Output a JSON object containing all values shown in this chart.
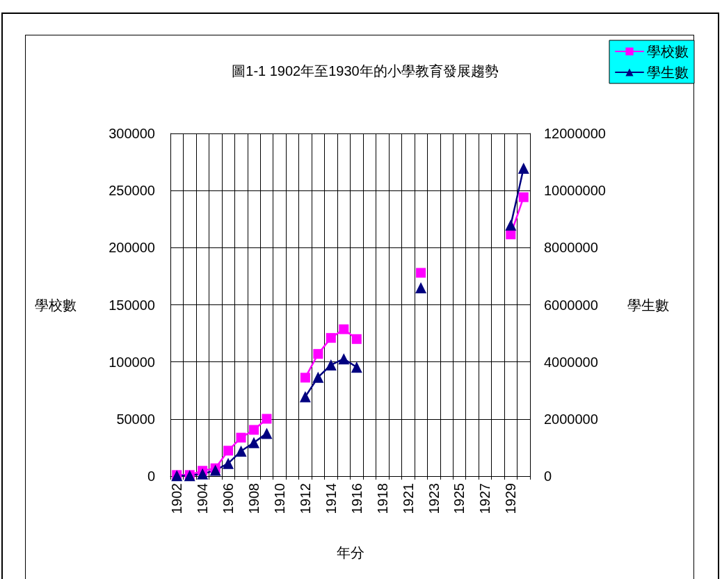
{
  "chart_data": {
    "type": "line",
    "title": "圖1-1 1902年至1930年的小學教育發展趨勢",
    "xlabel": "年分",
    "ylabel": "學校數",
    "y2label": "學生數",
    "categories": [
      "1902",
      null,
      "1904",
      null,
      "1906",
      null,
      "1908",
      null,
      "1910",
      null,
      "1912",
      null,
      "1914",
      null,
      "1916",
      null,
      "1918",
      null,
      "1921",
      null,
      "1923",
      null,
      "1925",
      null,
      "1927",
      null,
      "1929",
      null
    ],
    "series": [
      {
        "name": "學校數",
        "color": "#ff00ff",
        "marker": "square",
        "values": [
          1000,
          1000,
          4700,
          6900,
          22300,
          33700,
          40500,
          50200,
          null,
          null,
          86200,
          107000,
          121000,
          128600,
          120000,
          null,
          null,
          null,
          null,
          178000,
          null,
          null,
          null,
          null,
          null,
          null,
          211600,
          244200
        ]
      },
      {
        "name": "學生數",
        "color": "#000080",
        "marker": "triangle",
        "axis": "y2",
        "values": [
          20000,
          20000,
          77000,
          206000,
          446000,
          875000,
          1175000,
          1500000,
          null,
          null,
          2780000,
          3465000,
          3894000,
          4108000,
          3817000,
          null,
          null,
          null,
          null,
          6596000,
          null,
          null,
          null,
          null,
          null,
          null,
          8792000,
          10782000
        ]
      }
    ],
    "ylim": [
      0,
      300000
    ],
    "yticks": [
      0,
      50000,
      100000,
      150000,
      200000,
      250000,
      300000
    ],
    "y2lim": [
      0,
      12000000
    ],
    "y2ticks": [
      0,
      2000000,
      4000000,
      6000000,
      8000000,
      10000000,
      12000000
    ],
    "grid": true,
    "legend": "top right",
    "line_style": "solid"
  }
}
